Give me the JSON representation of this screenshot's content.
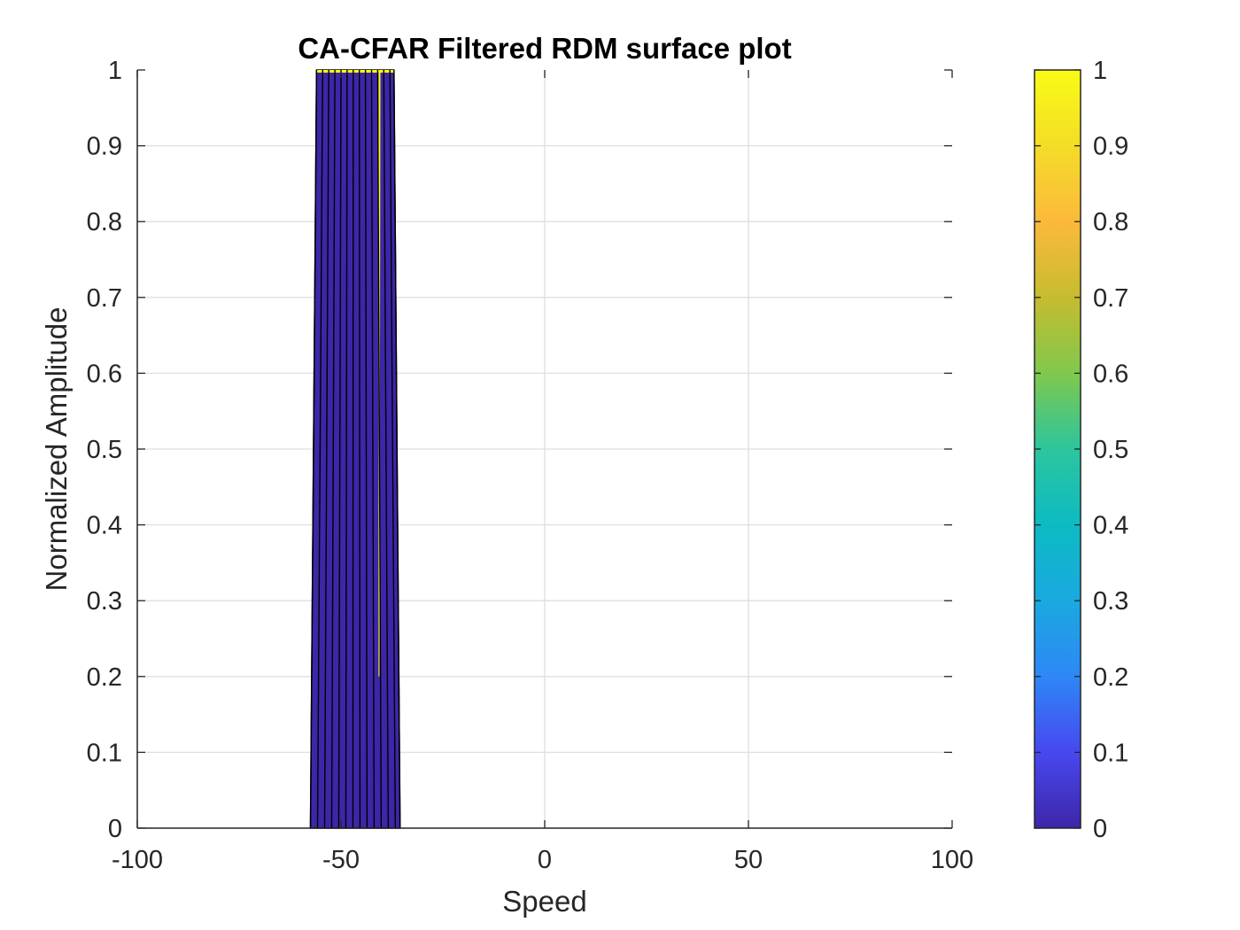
{
  "chart_data": {
    "type": "surface",
    "view": "side (amplitude vs speed)",
    "title": "CA-CFAR Filtered RDM surface plot",
    "xlabel": "Speed",
    "ylabel": "Normalized Amplitude",
    "xlim": [
      -100,
      100
    ],
    "ylim": [
      0,
      1
    ],
    "xticks": [
      "-100",
      "-50",
      "0",
      "50",
      "100"
    ],
    "yticks": [
      "0",
      "0.1",
      "0.2",
      "0.3",
      "0.4",
      "0.5",
      "0.6",
      "0.7",
      "0.8",
      "0.9",
      "1"
    ],
    "grid": true,
    "colormap": "parula",
    "colorbar": {
      "range": [
        0,
        1
      ],
      "ticks": [
        "0",
        "0.1",
        "0.2",
        "0.3",
        "0.4",
        "0.5",
        "0.6",
        "0.7",
        "0.8",
        "0.9",
        "1"
      ],
      "stops": [
        "#3e26a8",
        "#4748f0",
        "#2e87f7",
        "#1aa9e0",
        "#0cbbc3",
        "#2cc59d",
        "#80c84d",
        "#c6bc2f",
        "#fcb93c",
        "#f4dd27",
        "#f9fb15"
      ]
    },
    "detected_region": {
      "speed_start": -56,
      "speed_end": -37,
      "base_speed_start": -57.5,
      "base_speed_end": -35.5,
      "amplitude": 1,
      "bin_edges": [
        -56,
        -54.5,
        -53,
        -51.5,
        -50,
        -48.5,
        -47,
        -45.5,
        -44,
        -42.5,
        -41,
        -39.5,
        -38,
        -37
      ],
      "highlight_bin_speed": -41,
      "body_color": "#3e26a8",
      "highlight_color": "#f9fb15"
    }
  }
}
